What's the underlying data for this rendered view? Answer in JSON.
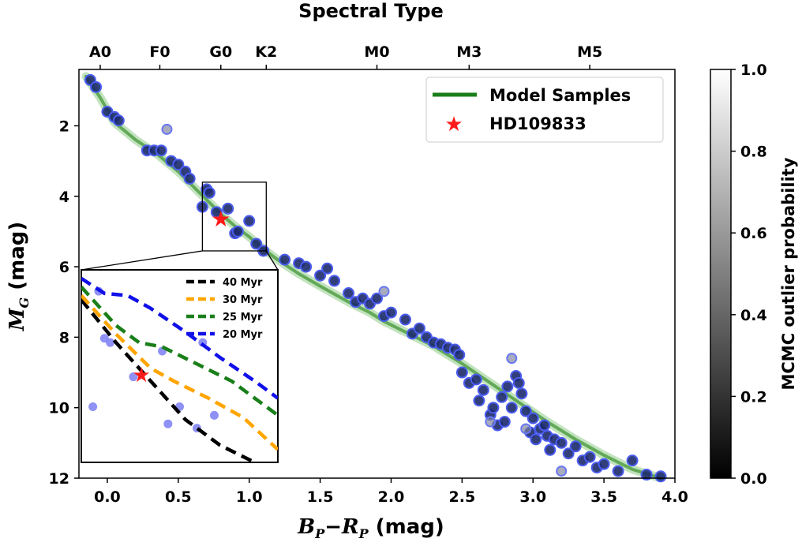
{
  "chart_data": [
    {
      "type": "scatter",
      "title": "Spectral Type",
      "xlabel_parts": {
        "b": "B",
        "bsub": "P",
        "minus": "−",
        "r": "R",
        "rsub": "P",
        "unit": " (mag)"
      },
      "ylabel_parts": {
        "m": "M",
        "sub": "G",
        "unit": " (mag)"
      },
      "xlim": [
        -0.2,
        4.0
      ],
      "ylim": [
        0.4,
        12.0
      ],
      "y_inverted": true,
      "x_ticks": [
        0.0,
        0.5,
        1.0,
        1.5,
        2.0,
        2.5,
        3.0,
        3.5,
        4.0
      ],
      "x_tick_labels": [
        "0.0",
        "0.5",
        "1.0",
        "1.5",
        "2.0",
        "2.5",
        "3.0",
        "3.5",
        "4.0"
      ],
      "y_ticks": [
        2,
        4,
        6,
        8,
        10,
        12
      ],
      "y_tick_labels": [
        "2",
        "4",
        "6",
        "8",
        "10",
        "12"
      ],
      "top_axis": {
        "labels": [
          "A0",
          "F0",
          "G0",
          "K2",
          "M0",
          "M3",
          "M5"
        ],
        "positions": [
          -0.05,
          0.37,
          0.8,
          1.12,
          1.9,
          2.55,
          3.4
        ]
      },
      "model_curve": {
        "name": "Model Samples",
        "color": "#2e8b22",
        "x": [
          -0.15,
          -0.05,
          0.05,
          0.2,
          0.35,
          0.5,
          0.6,
          0.7,
          0.8,
          0.9,
          1.0,
          1.1,
          1.2,
          1.35,
          1.5,
          1.7,
          1.85,
          1.95,
          2.1,
          2.3,
          2.5,
          2.7,
          2.9,
          3.1,
          3.3,
          3.5,
          3.7,
          3.9
        ],
        "y": [
          0.6,
          1.2,
          1.9,
          2.4,
          2.8,
          3.3,
          3.7,
          4.1,
          4.5,
          4.85,
          5.15,
          5.5,
          5.8,
          6.2,
          6.55,
          7.0,
          7.3,
          7.55,
          7.85,
          8.25,
          8.75,
          9.3,
          9.85,
          10.4,
          10.9,
          11.35,
          11.75,
          12.0
        ]
      },
      "highlight": {
        "name": "HD109833",
        "x": 0.8,
        "y": 4.65,
        "color": "#ff1a1a"
      },
      "legend": {
        "placement": "upper right",
        "entries": [
          "Model Samples",
          "HD109833"
        ]
      },
      "colorbar": {
        "label": "MCMC outlier probability",
        "range": [
          0.0,
          1.0
        ],
        "tick_labels": [
          "0.0",
          "0.2",
          "0.4",
          "0.6",
          "0.8",
          "1.0"
        ],
        "ticks": [
          0.0,
          0.2,
          0.4,
          0.6,
          0.8,
          1.0
        ]
      },
      "points": {
        "face_color": "#1c2a6b",
        "edge_color": "#4b5cf0",
        "x": [
          -0.12,
          -0.08,
          0.0,
          0.05,
          0.08,
          0.28,
          0.33,
          0.38,
          0.45,
          0.5,
          0.55,
          0.58,
          0.67,
          0.7,
          0.72,
          0.77,
          0.85,
          0.9,
          0.92,
          1.0,
          1.05,
          1.1,
          1.25,
          1.35,
          1.4,
          1.5,
          1.55,
          1.6,
          1.7,
          1.75,
          1.8,
          1.85,
          1.9,
          1.95,
          2.0,
          2.1,
          2.15,
          2.2,
          2.25,
          2.3,
          2.35,
          2.4,
          2.45,
          2.48,
          2.5,
          2.55,
          2.6,
          2.62,
          2.65,
          2.7,
          2.72,
          2.75,
          2.78,
          2.8,
          2.82,
          2.85,
          2.88,
          2.9,
          2.92,
          2.95,
          2.98,
          3.0,
          3.02,
          3.05,
          3.08,
          3.1,
          3.12,
          3.15,
          3.2,
          3.25,
          3.3,
          3.35,
          3.4,
          3.45,
          3.5,
          3.6,
          3.7,
          3.8,
          3.9
        ],
        "y": [
          0.7,
          0.9,
          1.6,
          1.75,
          1.85,
          2.7,
          2.7,
          2.7,
          3.0,
          3.1,
          3.3,
          3.5,
          4.3,
          3.8,
          3.9,
          4.45,
          4.35,
          5.05,
          5.0,
          4.7,
          5.35,
          5.55,
          5.8,
          5.9,
          6.0,
          6.25,
          6.05,
          6.4,
          6.75,
          7.0,
          6.9,
          7.05,
          6.9,
          7.4,
          7.3,
          7.5,
          7.9,
          7.75,
          8.0,
          8.15,
          8.2,
          8.3,
          8.35,
          8.5,
          9.0,
          9.3,
          9.2,
          9.8,
          9.5,
          10.2,
          10.0,
          10.5,
          9.7,
          10.4,
          9.4,
          10.0,
          9.1,
          9.3,
          9.6,
          10.1,
          10.7,
          10.3,
          10.9,
          10.6,
          10.5,
          10.8,
          11.2,
          10.9,
          11.0,
          11.3,
          11.1,
          11.5,
          11.4,
          11.7,
          11.6,
          11.8,
          11.5,
          11.9,
          11.95
        ]
      },
      "outlier_points": {
        "x": [
          0.42,
          1.95,
          2.85,
          2.7,
          3.2,
          2.95
        ],
        "y": [
          2.1,
          6.7,
          8.6,
          10.4,
          11.8,
          10.6
        ]
      }
    },
    {
      "type": "line",
      "name": "inset",
      "xlim": [
        -0.1,
        1.6
      ],
      "ylim": [
        2.5,
        7.0
      ],
      "y_inverted": true,
      "series": [
        {
          "name": "40 Myr",
          "color": "#000000",
          "x": [
            -0.1,
            0.2,
            0.5,
            0.8,
            1.1,
            1.4
          ],
          "y": [
            3.2,
            4.2,
            5.1,
            6.0,
            6.6,
            7.0
          ]
        },
        {
          "name": "30 Myr",
          "color": "#ffa500",
          "x": [
            -0.1,
            0.2,
            0.5,
            0.7,
            1.0,
            1.3,
            1.6
          ],
          "y": [
            3.1,
            4.0,
            4.8,
            5.1,
            5.5,
            5.95,
            6.7
          ]
        },
        {
          "name": "25 Myr",
          "color": "#1a7f1a",
          "x": [
            -0.1,
            0.2,
            0.4,
            0.6,
            0.9,
            1.2,
            1.6
          ],
          "y": [
            2.9,
            3.8,
            4.2,
            4.3,
            4.7,
            5.1,
            5.9
          ]
        },
        {
          "name": "20 Myr",
          "color": "#1010e8",
          "x": [
            -0.1,
            0.1,
            0.3,
            0.5,
            0.8,
            1.1,
            1.4,
            1.6
          ],
          "y": [
            2.7,
            3.05,
            3.1,
            3.4,
            3.95,
            4.55,
            5.1,
            5.5
          ]
        }
      ],
      "points": {
        "x": [
          0.05,
          0.1,
          0.15,
          0.35,
          0.6,
          0.65,
          0.9,
          0.95,
          1.05,
          0.75,
          0.0
        ],
        "y": [
          3.0,
          4.1,
          4.2,
          5.0,
          4.4,
          6.1,
          6.2,
          4.2,
          5.9,
          5.7,
          5.7
        ]
      },
      "highlight": {
        "x": 0.42,
        "y": 4.95
      }
    }
  ]
}
